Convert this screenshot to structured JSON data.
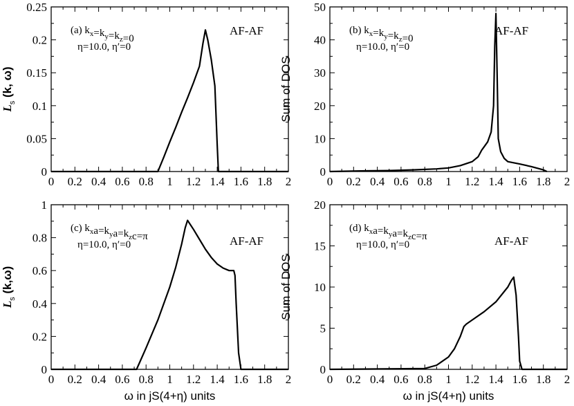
{
  "chart_data": [
    {
      "type": "line",
      "panel": "a",
      "annotation_line1": "(a) kx=ky=kz=0",
      "annotation_line2": "η=10.0, η′=0",
      "corner_label": "AF-AF",
      "ylabel": "Ls (k, ω)",
      "xlabel": "",
      "xlim": [
        0,
        2
      ],
      "ylim": [
        0,
        0.25
      ],
      "xticks": [
        "0",
        "0.2",
        "0.4",
        "0.6",
        "0.8",
        "1",
        "1.2",
        "1.4",
        "1.6",
        "1.8",
        "2"
      ],
      "yticks": [
        "0",
        "0.05",
        "0.1",
        "0.15",
        "0.2",
        "0.25"
      ],
      "series": [
        {
          "x": [
            0,
            0.9,
            0.95,
            1.0,
            1.05,
            1.1,
            1.15,
            1.2,
            1.25,
            1.28,
            1.3,
            1.32,
            1.35,
            1.38,
            1.4,
            1.41,
            2.0
          ],
          "y": [
            0,
            0,
            0.022,
            0.045,
            0.067,
            0.09,
            0.112,
            0.135,
            0.16,
            0.195,
            0.215,
            0.2,
            0.17,
            0.13,
            0.04,
            0,
            0
          ]
        }
      ]
    },
    {
      "type": "line",
      "panel": "b",
      "annotation_line1": "(b) kx=ky=kz=0",
      "annotation_line2": "η=10.0, η′=0",
      "corner_label": "AF-AF",
      "ylabel": "Sum of DOS",
      "xlabel": "",
      "xlim": [
        0,
        2
      ],
      "ylim": [
        0,
        50
      ],
      "xticks": [
        "0",
        "0.2",
        "0.4",
        "0.6",
        "0.8",
        "1",
        "1.2",
        "1.4",
        "1.6",
        "1.8",
        "2"
      ],
      "yticks": [
        "0",
        "10",
        "20",
        "30",
        "40",
        "50"
      ],
      "series": [
        {
          "x": [
            0,
            0.3,
            0.5,
            0.7,
            0.9,
            1.0,
            1.1,
            1.2,
            1.25,
            1.28,
            1.3,
            1.33,
            1.36,
            1.38,
            1.39,
            1.4,
            1.41,
            1.42,
            1.44,
            1.47,
            1.5,
            1.6,
            1.7,
            1.8,
            1.83
          ],
          "y": [
            0,
            0.2,
            0.3,
            0.5,
            0.8,
            1.1,
            1.8,
            3,
            4.5,
            6.5,
            7.5,
            9,
            12,
            20,
            38,
            48,
            30,
            10,
            6,
            4,
            3,
            2.3,
            1.5,
            0.5,
            0
          ]
        }
      ]
    },
    {
      "type": "line",
      "panel": "c",
      "annotation_line1": "(c) kxa=kya=kzc=π",
      "annotation_line2": "η=10.0, η′=0",
      "corner_label": "AF-AF",
      "ylabel": "Ls (k,ω)",
      "xlabel": "ω in jS(4+η) units",
      "xlim": [
        0,
        2
      ],
      "ylim": [
        0,
        1
      ],
      "xticks": [
        "0",
        "0.2",
        "0.4",
        "0.6",
        "0.8",
        "1",
        "1.2",
        "1.4",
        "1.6",
        "1.8",
        "2"
      ],
      "yticks": [
        "0",
        "0.2",
        "0.4",
        "0.6",
        "0.8",
        "1"
      ],
      "series": [
        {
          "x": [
            0,
            0.72,
            0.8,
            0.9,
            1.0,
            1.05,
            1.1,
            1.13,
            1.15,
            1.2,
            1.25,
            1.3,
            1.35,
            1.4,
            1.45,
            1.5,
            1.54,
            1.55,
            1.56,
            1.58,
            1.6,
            2.0
          ],
          "y": [
            0,
            0,
            0.13,
            0.3,
            0.5,
            0.62,
            0.76,
            0.86,
            0.905,
            0.85,
            0.79,
            0.73,
            0.68,
            0.64,
            0.615,
            0.6,
            0.6,
            0.57,
            0.4,
            0.1,
            0,
            0
          ]
        }
      ]
    },
    {
      "type": "line",
      "panel": "d",
      "annotation_line1": "(d) kxa=kya=kzc=π",
      "annotation_line2": "η=10.0, η′=0",
      "corner_label": "AF-AF",
      "ylabel": "Sum of DOS",
      "xlabel": "ω in jS(4+η) units",
      "xlim": [
        0,
        2
      ],
      "ylim": [
        0,
        20
      ],
      "xticks": [
        "0",
        "0.2",
        "0.4",
        "0.6",
        "0.8",
        "1",
        "1.2",
        "1.4",
        "1.6",
        "1.8",
        "2"
      ],
      "yticks": [
        "0",
        "5",
        "10",
        "15",
        "20"
      ],
      "series": [
        {
          "x": [
            0,
            0.8,
            0.9,
            1.0,
            1.05,
            1.1,
            1.13,
            1.15,
            1.2,
            1.3,
            1.4,
            1.5,
            1.53,
            1.55,
            1.57,
            1.59,
            1.6,
            1.62,
            2.0
          ],
          "y": [
            0,
            0.1,
            0.5,
            1.5,
            2.5,
            4,
            5.2,
            5.5,
            6,
            7,
            8.2,
            10,
            10.8,
            11.2,
            9,
            4,
            1,
            0,
            0
          ]
        }
      ]
    }
  ]
}
